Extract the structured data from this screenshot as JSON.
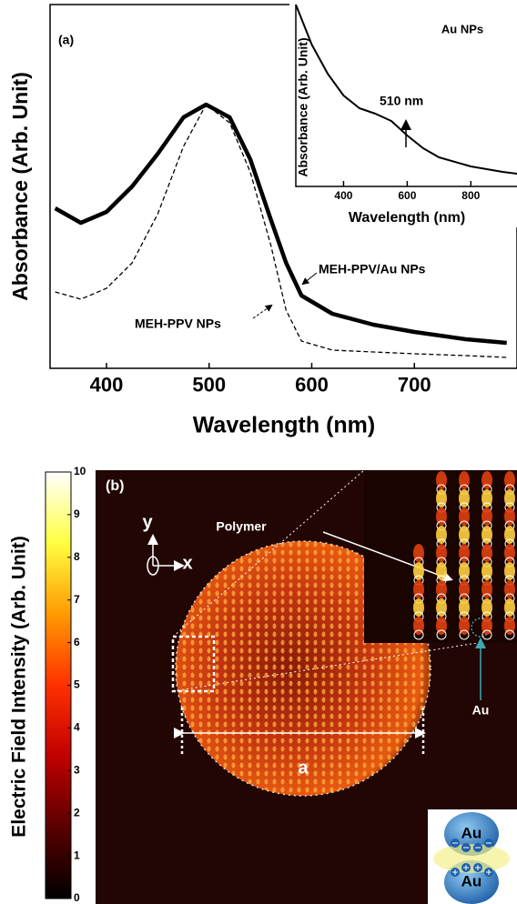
{
  "chart_data": [
    {
      "type": "line",
      "label": "(a)",
      "xlabel": "Wavelength (nm)",
      "ylabel": "Absorbance (Arb. Unit)",
      "x": [
        350,
        375,
        400,
        425,
        450,
        475,
        497,
        520,
        540,
        560,
        575,
        590,
        620,
        660,
        700,
        750,
        790
      ],
      "xlim": [
        345,
        800
      ],
      "xticks": [
        400,
        500,
        600,
        700
      ],
      "ylim": [
        0,
        1
      ],
      "series": [
        {
          "name": "MEH-PPV/Au NPs",
          "color": "#000000",
          "dash": false,
          "width": 4.5,
          "values": [
            0.44,
            0.4,
            0.43,
            0.5,
            0.59,
            0.69,
            0.725,
            0.69,
            0.575,
            0.41,
            0.29,
            0.2,
            0.15,
            0.12,
            0.1,
            0.08,
            0.07
          ]
        },
        {
          "name": "MEH-PPV NPs",
          "color": "#000000",
          "dash": true,
          "width": 1.3,
          "values": [
            0.21,
            0.19,
            0.22,
            0.29,
            0.425,
            0.61,
            0.725,
            0.675,
            0.54,
            0.34,
            0.16,
            0.075,
            0.05,
            0.045,
            0.04,
            0.035,
            0.03
          ]
        }
      ]
    },
    {
      "type": "line",
      "title": "Au NPs",
      "xlabel": "Wavelength (nm)",
      "ylabel": "Absorbance (Arb. Unit)",
      "annotation": "510 nm",
      "x": [
        250,
        300,
        350,
        400,
        450,
        500,
        550,
        600,
        650,
        700,
        800,
        900,
        945
      ],
      "xlim": [
        250,
        945
      ],
      "xticks": [
        400,
        600,
        800
      ],
      "ylim": [
        0,
        1
      ],
      "series": [
        {
          "name": "Au NPs",
          "color": "#000000",
          "dash": false,
          "width": 2,
          "values": [
            1.0,
            0.78,
            0.62,
            0.5,
            0.43,
            0.4,
            0.36,
            0.28,
            0.21,
            0.16,
            0.11,
            0.08,
            0.07
          ]
        }
      ]
    },
    {
      "type": "heatmap",
      "label": "(b)",
      "colorbar_label": "Electric Field Intensity (Arb. Unit)",
      "zlim": [
        0,
        10
      ],
      "zticks": [
        0,
        1,
        2,
        3,
        4,
        5,
        6,
        7,
        8,
        9,
        10
      ],
      "colormap": [
        "#000000",
        "#5a0000",
        "#c00000",
        "#ff3000",
        "#ff9a00",
        "#ffff40",
        "#ffffff"
      ],
      "annotations": [
        "Polymer",
        "Au",
        "a",
        "y",
        "x"
      ],
      "dimer_labels": [
        "Au",
        "Au"
      ]
    }
  ]
}
